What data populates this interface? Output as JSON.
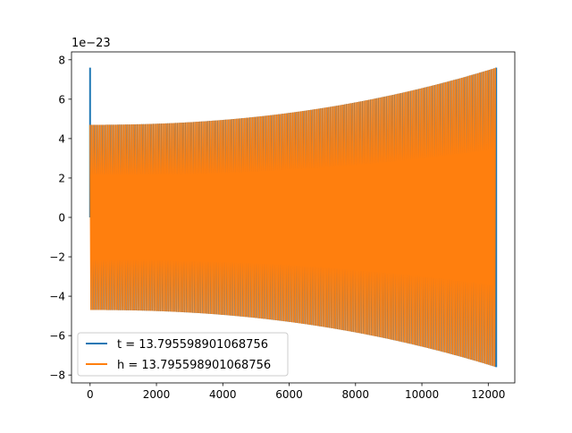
{
  "chart_data": {
    "type": "line",
    "title": "",
    "xlabel": "",
    "ylabel": "",
    "y_offset_label": "1e−23",
    "xlim": [
      -560,
      12800
    ],
    "ylim": [
      -8.4,
      8.4
    ],
    "x_ticks": [
      0,
      2000,
      4000,
      6000,
      8000,
      10000,
      12000
    ],
    "x_tick_labels": [
      "0",
      "2000",
      "4000",
      "6000",
      "8000",
      "10000",
      "12000"
    ],
    "y_ticks": [
      -8,
      -6,
      -4,
      -2,
      0,
      2,
      4,
      6,
      8
    ],
    "y_tick_labels": [
      "−8",
      "−6",
      "−4",
      "−2",
      "0",
      "2",
      "4",
      "6",
      "8"
    ],
    "grid": false,
    "legend_position": "lower-left",
    "x_max": 12240,
    "series": [
      {
        "name": "t = 13.795598901068756",
        "color": "#1f77b4",
        "envelope_start": 4.7,
        "envelope_end": 7.6,
        "spikes": [
          {
            "x": 0,
            "y_min": 0,
            "y_max": 7.6
          },
          {
            "x": 12240,
            "y_min": -7.6,
            "y_max": 7.6
          }
        ]
      },
      {
        "name": "h = 13.795598901068756",
        "color": "#ff7f0e",
        "envelope_start": 4.7,
        "envelope_end": 7.6
      }
    ]
  }
}
